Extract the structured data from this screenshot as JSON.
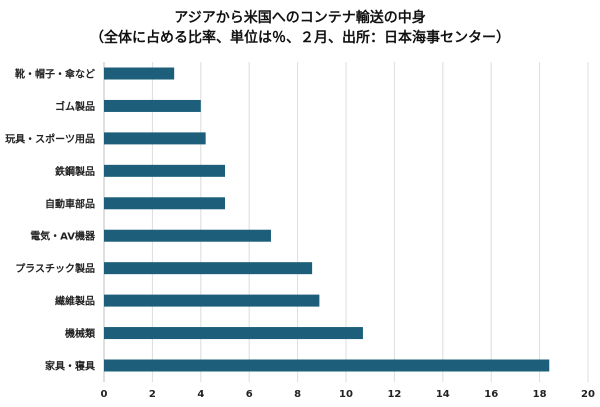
{
  "chart_data": {
    "type": "bar",
    "orientation": "horizontal",
    "title": "アジアから米国へのコンテナ輸送の中身",
    "subtitle": "（全体に占める比率、単位は％、２月、出所：日本海事センター）",
    "categories": [
      "靴・帽子・傘など",
      "ゴム製品",
      "玩具・スポーツ用品",
      "鉄鋼製品",
      "自動車部品",
      "電気・AV機器",
      "プラスチック製品",
      "繊維製品",
      "機械類",
      "家具・寝具"
    ],
    "values": [
      2.9,
      4.0,
      4.2,
      5.0,
      5.0,
      6.9,
      8.6,
      8.9,
      10.7,
      18.4
    ],
    "xlim": [
      0,
      20
    ],
    "xticks": [
      "0",
      "2",
      "4",
      "6",
      "8",
      "10",
      "12",
      "14",
      "16",
      "18",
      "20"
    ],
    "grid": true,
    "bar_color": "#1d5f7a"
  }
}
